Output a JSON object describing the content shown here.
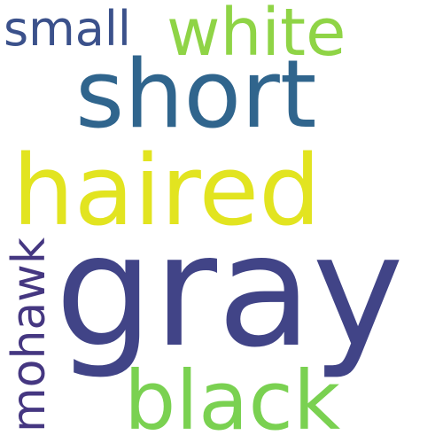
{
  "cloud": {
    "background": "#ffffff",
    "words": {
      "gray": {
        "text": "gray",
        "color": "#414487"
      },
      "haired": {
        "text": "haired",
        "color": "#e2e420"
      },
      "short": {
        "text": "short",
        "color": "#30658d"
      },
      "white": {
        "text": "white",
        "color": "#8fd446"
      },
      "black": {
        "text": "black",
        "color": "#7ad151"
      },
      "small": {
        "text": "small",
        "color": "#3b518b"
      },
      "mohawk": {
        "text": "mohawk",
        "color": "#453781"
      }
    }
  }
}
